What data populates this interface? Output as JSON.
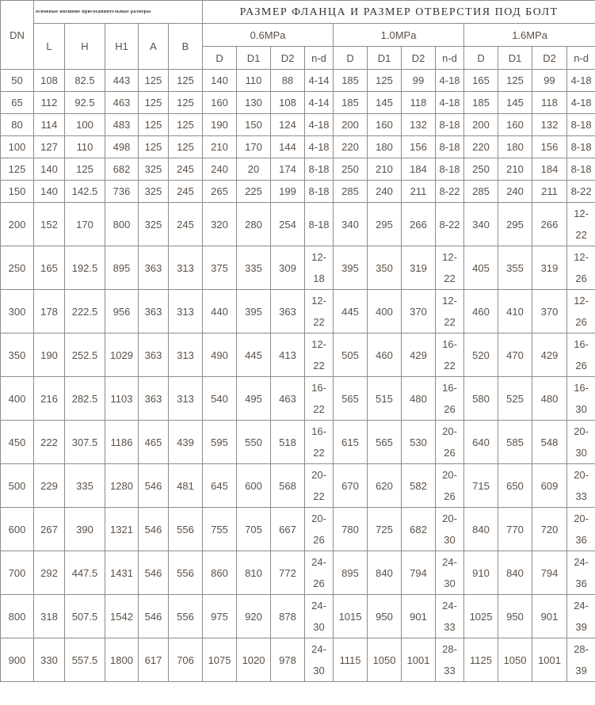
{
  "header": {
    "dn": "DN",
    "dims_title": "основные внешние присоединительные размеры",
    "flange_title": "РАЗМЕР ФЛАНЦА И РАЗМЕР ОТВЕРСТИЯ ПОД БОЛТ",
    "dims_cols": [
      "L",
      "H",
      "H1",
      "A",
      "B"
    ],
    "pressures": [
      "0.6MPa",
      "1.0MPa",
      "1.6MPa"
    ],
    "flange_cols": [
      "D",
      "D1",
      "D2",
      "n-d"
    ]
  },
  "rows": [
    [
      "50",
      "108",
      "82.5",
      "443",
      "125",
      "125",
      "140",
      "110",
      "88",
      "4-14",
      "185",
      "125",
      "99",
      "4-18",
      "165",
      "125",
      "99",
      "4-18"
    ],
    [
      "65",
      "112",
      "92.5",
      "463",
      "125",
      "125",
      "160",
      "130",
      "108",
      "4-14",
      "185",
      "145",
      "118",
      "4-18",
      "185",
      "145",
      "118",
      "4-18"
    ],
    [
      "80",
      "114",
      "100",
      "483",
      "125",
      "125",
      "190",
      "150",
      "124",
      "4-18",
      "200",
      "160",
      "132",
      "8-18",
      "200",
      "160",
      "132",
      "8-18"
    ],
    [
      "100",
      "127",
      "110",
      "498",
      "125",
      "125",
      "210",
      "170",
      "144",
      "4-18",
      "220",
      "180",
      "156",
      "8-18",
      "220",
      "180",
      "156",
      "8-18"
    ],
    [
      "125",
      "140",
      "125",
      "682",
      "325",
      "245",
      "240",
      "20",
      "174",
      "8-18",
      "250",
      "210",
      "184",
      "8-18",
      "250",
      "210",
      "184",
      "8-18"
    ],
    [
      "150",
      "140",
      "142.5",
      "736",
      "325",
      "245",
      "265",
      "225",
      "199",
      "8-18",
      "285",
      "240",
      "211",
      "8-22",
      "285",
      "240",
      "211",
      "8-22"
    ],
    [
      "200",
      "152",
      "170",
      "800",
      "325",
      "245",
      "320",
      "280",
      "254",
      "8-18",
      "340",
      "295",
      "266",
      "8-22",
      "340",
      "295",
      "266",
      "12-22"
    ],
    [
      "250",
      "165",
      "192.5",
      "895",
      "363",
      "313",
      "375",
      "335",
      "309",
      "12-18",
      "395",
      "350",
      "319",
      "12-22",
      "405",
      "355",
      "319",
      "12-26"
    ],
    [
      "300",
      "178",
      "222.5",
      "956",
      "363",
      "313",
      "440",
      "395",
      "363",
      "12-22",
      "445",
      "400",
      "370",
      "12-22",
      "460",
      "410",
      "370",
      "12-26"
    ],
    [
      "350",
      "190",
      "252.5",
      "1029",
      "363",
      "313",
      "490",
      "445",
      "413",
      "12-22",
      "505",
      "460",
      "429",
      "16-22",
      "520",
      "470",
      "429",
      "16-26"
    ],
    [
      "400",
      "216",
      "282.5",
      "1103",
      "363",
      "313",
      "540",
      "495",
      "463",
      "16-22",
      "565",
      "515",
      "480",
      "16-26",
      "580",
      "525",
      "480",
      "16-30"
    ],
    [
      "450",
      "222",
      "307.5",
      "1186",
      "465",
      "439",
      "595",
      "550",
      "518",
      "16-22",
      "615",
      "565",
      "530",
      "20-26",
      "640",
      "585",
      "548",
      "20-30"
    ],
    [
      "500",
      "229",
      "335",
      "1280",
      "546",
      "481",
      "645",
      "600",
      "568",
      "20-22",
      "670",
      "620",
      "582",
      "20-26",
      "715",
      "650",
      "609",
      "20-33"
    ],
    [
      "600",
      "267",
      "390",
      "1321",
      "546",
      "556",
      "755",
      "705",
      "667",
      "20-26",
      "780",
      "725",
      "682",
      "20-30",
      "840",
      "770",
      "720",
      "20-36"
    ],
    [
      "700",
      "292",
      "447.5",
      "1431",
      "546",
      "556",
      "860",
      "810",
      "772",
      "24-26",
      "895",
      "840",
      "794",
      "24-30",
      "910",
      "840",
      "794",
      "24-36"
    ],
    [
      "800",
      "318",
      "507.5",
      "1542",
      "546",
      "556",
      "975",
      "920",
      "878",
      "24-30",
      "1015",
      "950",
      "901",
      "24-33",
      "1025",
      "950",
      "901",
      "24-39"
    ],
    [
      "900",
      "330",
      "557.5",
      "1800",
      "617",
      "706",
      "1075",
      "1020",
      "978",
      "24-30",
      "1115",
      "1050",
      "1001",
      "28-33",
      "1125",
      "1050",
      "1001",
      "28-39"
    ]
  ]
}
